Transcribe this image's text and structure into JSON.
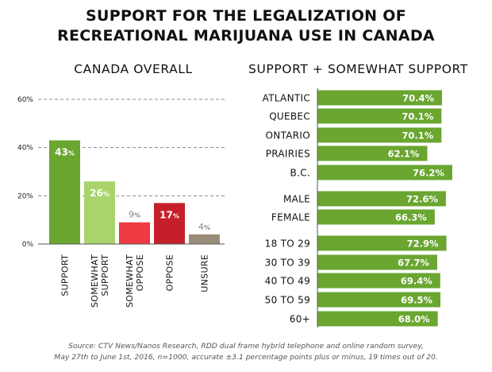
{
  "title": {
    "line1": "SUPPORT FOR THE LEGALIZATION OF",
    "line2": "RECREATIONAL MARIJUANA USE IN CANADA"
  },
  "source": {
    "line1": "Source: CTV News/Nanos Research, RDD dual frame hybrid telephone and online random survey,",
    "line2": "May 27th to June 1st, 2016, n=1000, accurate ±3.1 percentage points plus or minus, 19 times out of 20."
  },
  "chart_data": [
    {
      "type": "bar",
      "title": "CANADA OVERALL",
      "ylim": [
        0,
        60
      ],
      "yticks": [
        0,
        20,
        40,
        60
      ],
      "ytick_labels": [
        "0%",
        "20%",
        "40%",
        "60%"
      ],
      "grid": true,
      "categories": [
        "SUPPORT",
        "SOMEWHAT SUPPORT",
        "SOMEWHAT OPPOSE",
        "OPPOSE",
        "UNSURE"
      ],
      "category_lines": [
        [
          "SUPPORT"
        ],
        [
          "SOMEWHAT",
          "SUPPORT"
        ],
        [
          "SOMEWHAT",
          "OPPOSE"
        ],
        [
          "OPPOSE"
        ],
        [
          "UNSURE"
        ]
      ],
      "values": [
        43,
        26,
        9,
        17,
        4
      ],
      "value_labels": [
        "43",
        "26",
        "9",
        "17",
        "4"
      ],
      "value_suffix": "%",
      "colors": [
        "#6aa630",
        "#a9d46b",
        "#ee3a43",
        "#c5202a",
        "#9a8c7a"
      ],
      "label_colors": [
        "#ffffff",
        "#ffffff",
        "#888888",
        "#ffffff",
        "#888888"
      ],
      "label_inside": [
        true,
        true,
        false,
        true,
        false
      ]
    },
    {
      "type": "bar",
      "orientation": "horizontal",
      "title": "SUPPORT + SOMEWHAT SUPPORT",
      "color": "#6aa630",
      "groups": [
        {
          "categories": [
            "ATLANTIC",
            "QUEBEC",
            "ONTARIO",
            "PRAIRIES",
            "B.C."
          ],
          "values": [
            70.4,
            70.1,
            70.1,
            62.1,
            76.2
          ],
          "value_labels": [
            "70.4%",
            "70.1%",
            "70.1%",
            "62.1%",
            "76.2%"
          ]
        },
        {
          "categories": [
            "MALE",
            "FEMALE"
          ],
          "values": [
            72.6,
            66.3
          ],
          "value_labels": [
            "72.6%",
            "66.3%"
          ]
        },
        {
          "categories": [
            "18 TO 29",
            "30 TO 39",
            "40 TO 49",
            "50 TO 59",
            "60+"
          ],
          "values": [
            72.9,
            67.7,
            69.4,
            69.5,
            68.0
          ],
          "value_labels": [
            "72.9%",
            "67.7%",
            "69.4%",
            "69.5%",
            "68.0%"
          ]
        }
      ]
    }
  ]
}
